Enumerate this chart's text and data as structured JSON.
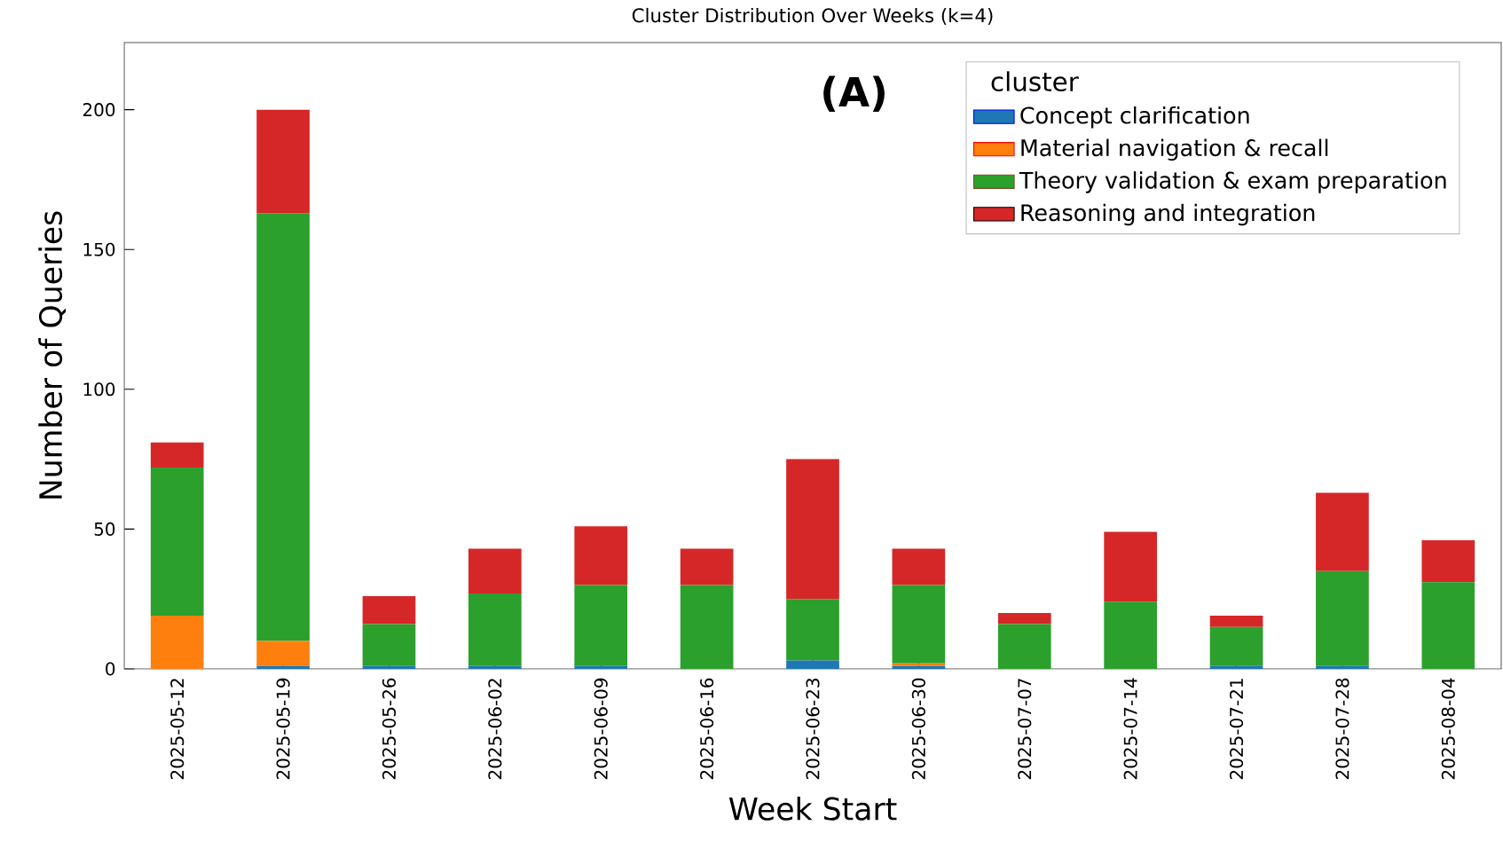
{
  "chart_data": {
    "type": "bar",
    "stacked": true,
    "title": "Cluster Distribution Over Weeks (k=4)",
    "xlabel": "Week Start",
    "ylabel": "Number of Queries",
    "legend_title": "cluster",
    "legend": "top right",
    "annotations": [
      "(A)"
    ],
    "categories": [
      "2025-05-12",
      "2025-05-19",
      "2025-05-26",
      "2025-06-02",
      "2025-06-09",
      "2025-06-16",
      "2025-06-23",
      "2025-06-30",
      "2025-07-07",
      "2025-07-14",
      "2025-07-21",
      "2025-07-28",
      "2025-08-04"
    ],
    "ylim": [
      0,
      224
    ],
    "yticks": [
      0,
      50,
      100,
      150,
      200
    ],
    "series": [
      {
        "name": "Concept clarification",
        "color": "#1f77b4",
        "values": [
          0,
          1,
          1,
          1,
          1,
          0,
          3,
          1,
          0,
          0,
          1,
          1,
          0
        ]
      },
      {
        "name": "Material navigation & recall",
        "color": "#ff7f0e",
        "values": [
          19,
          9,
          0,
          0,
          0,
          0,
          0,
          1,
          0,
          0,
          0,
          0,
          0
        ]
      },
      {
        "name": "Theory validation & exam preparation",
        "color": "#2ca02c",
        "values": [
          53,
          153,
          15,
          26,
          29,
          30,
          22,
          28,
          16,
          24,
          14,
          34,
          31
        ]
      },
      {
        "name": "Reasoning and integration",
        "color": "#d62728",
        "values": [
          9,
          37,
          10,
          16,
          21,
          13,
          50,
          13,
          4,
          25,
          4,
          28,
          15
        ]
      }
    ]
  }
}
